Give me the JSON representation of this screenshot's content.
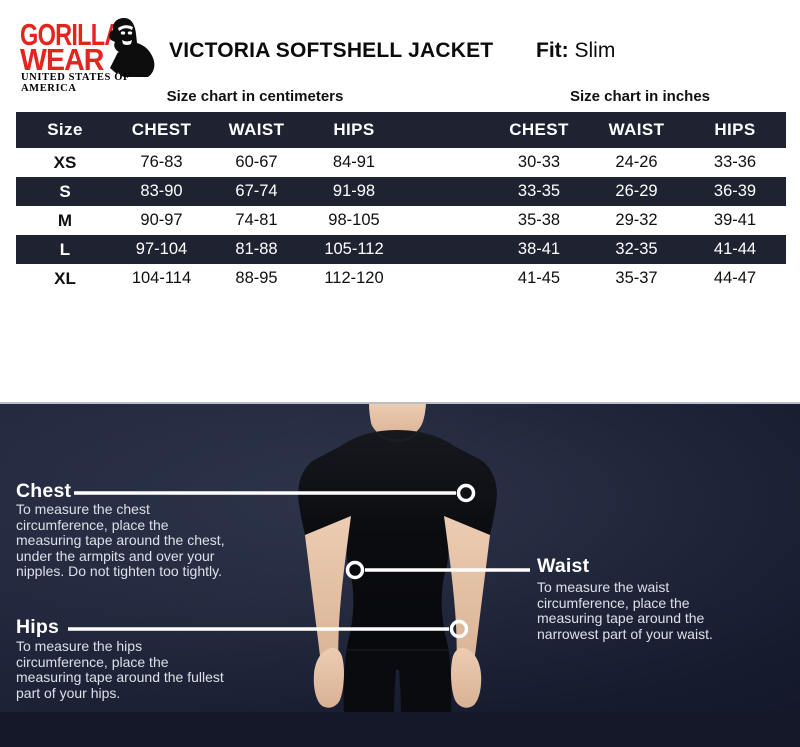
{
  "brand": {
    "name_line1": "GORILLA",
    "name_line2": "WEAR",
    "tagline": "UNITED STATES OF AMERICA",
    "logo_red": "#e2251f",
    "gorilla_icon": "gorilla-silhouette"
  },
  "header": {
    "title": "VICTORIA SOFTSHELL JACKET",
    "fit_label": "Fit:",
    "fit_value": "Slim"
  },
  "size_chart": {
    "cm_caption": "Size chart in centimeters",
    "in_caption": "Size chart in inches",
    "columns": [
      "Size",
      "CHEST",
      "WAIST",
      "HIPS",
      "CHEST",
      "WAIST",
      "HIPS"
    ],
    "rows": [
      {
        "size": "XS",
        "cm": [
          "76-83",
          "60-67",
          "84-91"
        ],
        "in": [
          "30-33",
          "24-26",
          "33-36"
        ]
      },
      {
        "size": "S",
        "cm": [
          "83-90",
          "67-74",
          "91-98"
        ],
        "in": [
          "33-35",
          "26-29",
          "36-39"
        ]
      },
      {
        "size": "M",
        "cm": [
          "90-97",
          "74-81",
          "98-105"
        ],
        "in": [
          "35-38",
          "29-32",
          "39-41"
        ]
      },
      {
        "size": "L",
        "cm": [
          "97-104",
          "81-88",
          "105-112"
        ],
        "in": [
          "38-41",
          "32-35",
          "41-44"
        ]
      },
      {
        "size": "XL",
        "cm": [
          "104-114",
          "88-95",
          "112-120"
        ],
        "in": [
          "41-45",
          "35-37",
          "44-47"
        ]
      }
    ],
    "colors": {
      "header_bg": "#1e2231",
      "alt_row_bg": "#1e2231",
      "alt_row_text": "#ffffff"
    }
  },
  "measure_guide": {
    "background_color": "#1b2134",
    "figure": "woman-front-torso-black-tshirt",
    "chest": {
      "label": "Chest",
      "description": "To measure the chest\ncircumference, place the\nmeasuring tape around the chest,\nunder the armpits and over your\nnipples. Do not tighten too tightly."
    },
    "waist": {
      "label": "Waist",
      "description": "To measure the waist\ncircumference, place the\nmeasuring tape around the\nnarrowest part of your waist."
    },
    "hips": {
      "label": "Hips",
      "description": "To measure the hips\ncircumference, place the\nmeasuring tape around the fullest\npart of your hips."
    }
  }
}
